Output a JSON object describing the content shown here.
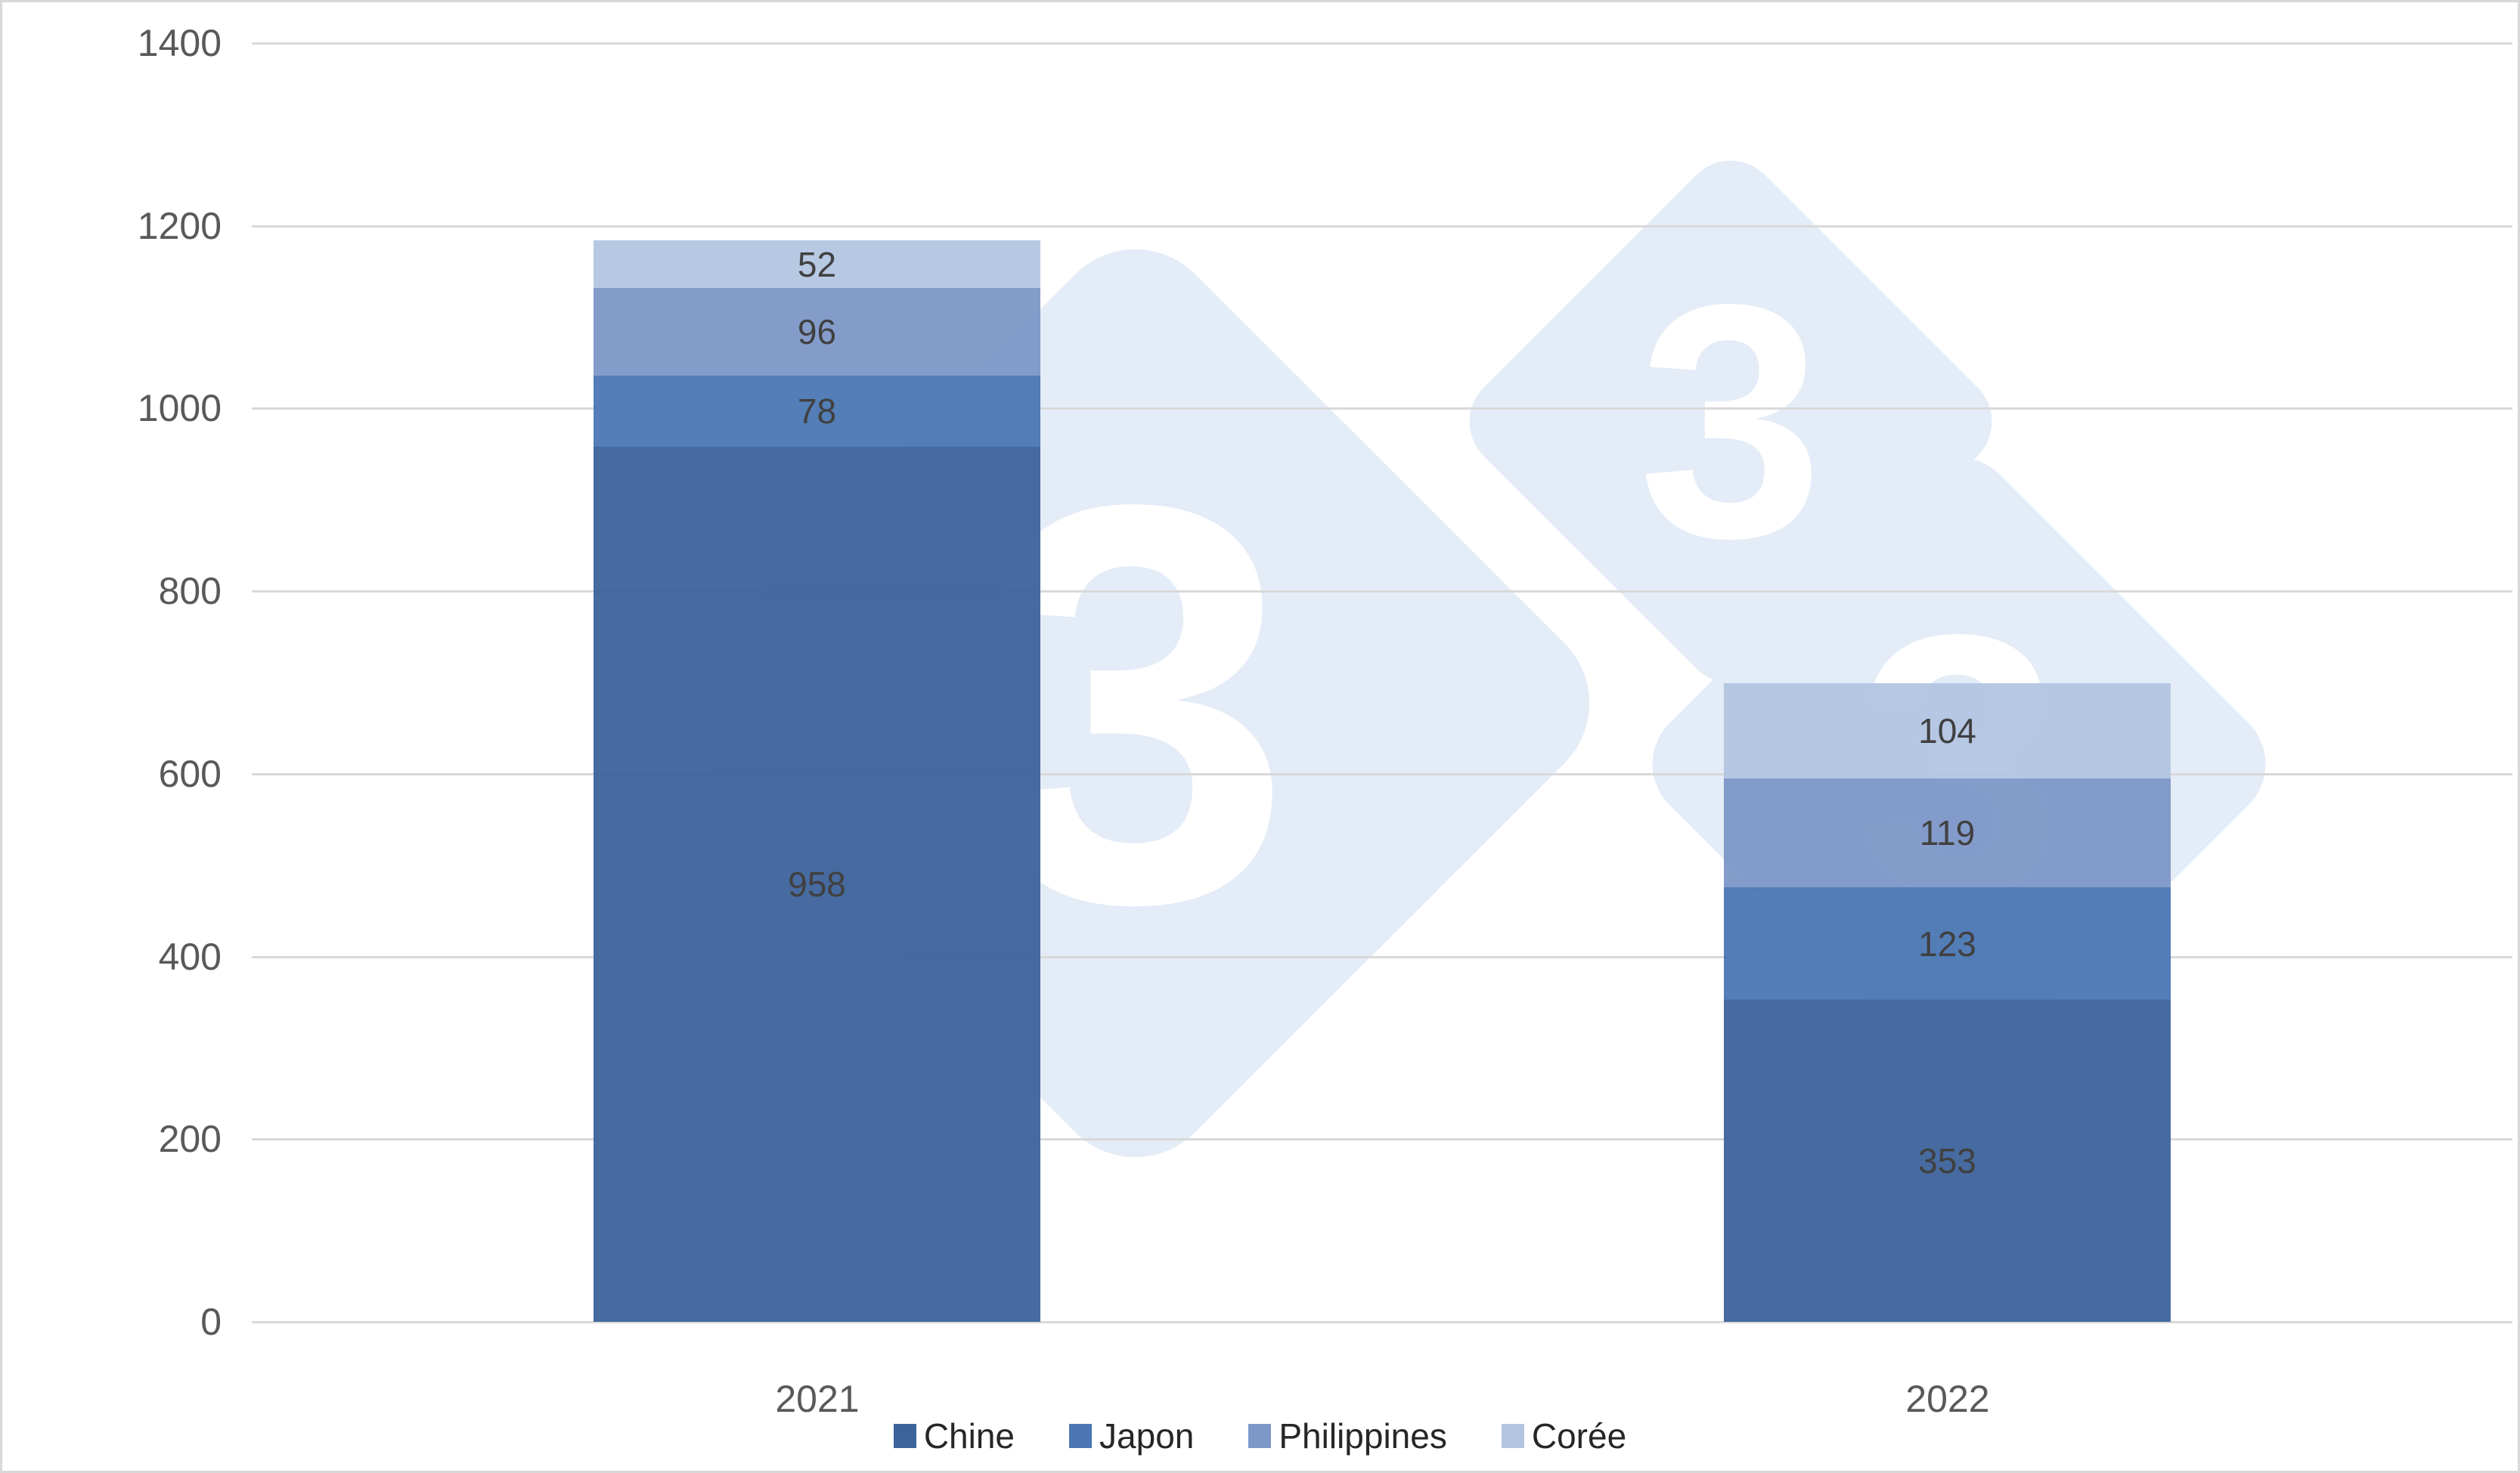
{
  "chart_data": {
    "type": "bar",
    "stacked": true,
    "title": "",
    "xlabel": "",
    "ylabel": "",
    "categories": [
      "2021",
      "2022"
    ],
    "series": [
      {
        "name": "Chine",
        "color": "#3D639B",
        "values": [
          958,
          353
        ]
      },
      {
        "name": "Japon",
        "color": "#4A77B3",
        "values": [
          78,
          123
        ]
      },
      {
        "name": "Philippines",
        "color": "#7D97C7",
        "values": [
          96,
          119
        ]
      },
      {
        "name": "Corée",
        "color": "#B3C5E1",
        "values": [
          52,
          104
        ]
      }
    ],
    "ylim": [
      0,
      1400
    ],
    "ytick_step": 200,
    "yticks": [
      0,
      200,
      400,
      600,
      800,
      1000,
      1200,
      1400
    ],
    "grid": true,
    "legend_position": "bottom",
    "bar_value_labels_shown": true
  },
  "axis": {
    "tick_color": "#595959",
    "grid_color": "#D9D9D9",
    "value_label_color": "#404040"
  },
  "watermark": {
    "glyph": "3",
    "diamond_color": "#E4ECF7",
    "glyph_color": "#FFFFFF"
  },
  "page": {
    "background": "#FFFFFF",
    "border_color": "#D8D8D8"
  }
}
